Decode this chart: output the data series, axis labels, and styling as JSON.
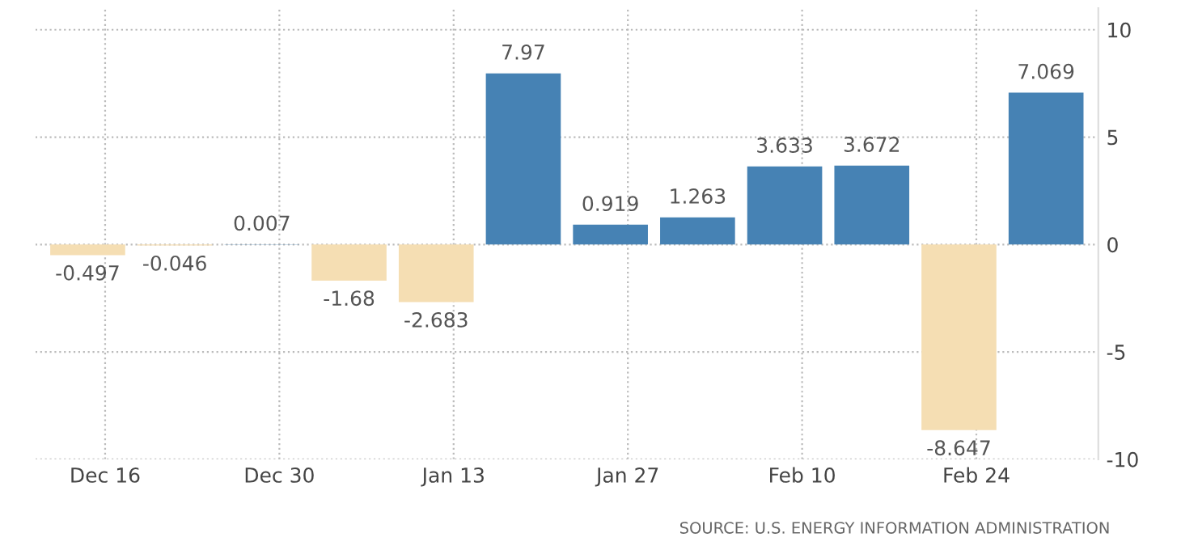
{
  "chart_data": {
    "type": "bar",
    "categories": [
      "Dec 16",
      null,
      "Dec 30",
      null,
      "Jan 13",
      null,
      "Jan 27",
      null,
      "Feb 10",
      null,
      "Feb 24",
      null
    ],
    "values": [
      -0.497,
      -0.046,
      0.007,
      -1.68,
      -2.683,
      7.97,
      0.919,
      1.263,
      3.633,
      3.672,
      -8.647,
      7.069
    ],
    "colors": [
      "#f5deb3",
      "#f5deb3",
      "#4682b4",
      "#f5deb3",
      "#f5deb3",
      "#4682b4",
      "#4682b4",
      "#4682b4",
      "#4682b4",
      "#4682b4",
      "#f5deb3",
      "#4682b4"
    ],
    "data_labels": true,
    "ylim": [
      -10,
      11
    ],
    "yticks": [
      -10,
      -5,
      0,
      5,
      10
    ],
    "grid": true,
    "annotations": [
      "SOURCE: U.S. ENERGY INFORMATION ADMINISTRATION"
    ]
  }
}
